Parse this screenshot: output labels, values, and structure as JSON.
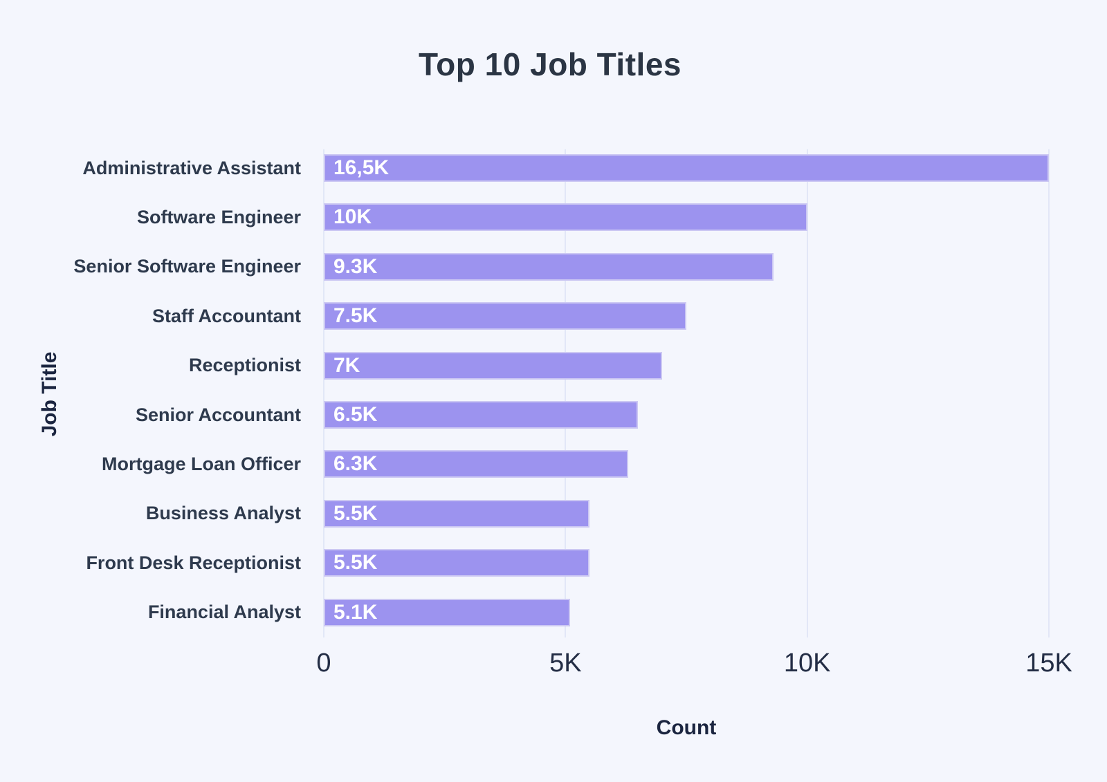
{
  "chart_data": {
    "type": "bar",
    "orientation": "horizontal",
    "title": "Top 10 Job Titles",
    "xlabel": "Count",
    "ylabel": "Job Title",
    "xlim": [
      0,
      15000
    ],
    "grid": "vertical-gridlines-on",
    "legend": "none",
    "xticks": [
      {
        "label": "0",
        "value": 0
      },
      {
        "label": "5K",
        "value": 5000
      },
      {
        "label": "10K",
        "value": 10000
      },
      {
        "label": "15K",
        "value": 15000
      }
    ],
    "categories": [
      "Administrative Assistant",
      "Software Engineer",
      "Senior Software Engineer",
      "Staff Accountant",
      "Receptionist",
      "Senior Accountant",
      "Mortgage Loan Officer",
      "Business Analyst",
      "Front Desk Receptionist",
      "Financial Analyst"
    ],
    "values": [
      16500,
      10000,
      9300,
      7500,
      7000,
      6500,
      6300,
      5500,
      5500,
      5100
    ],
    "bars": [
      {
        "label": "Administrative Assistant",
        "value": 16500,
        "display": "16,5K"
      },
      {
        "label": "Software Engineer",
        "value": 10000,
        "display": "10K"
      },
      {
        "label": "Senior Software Engineer",
        "value": 9300,
        "display": "9.3K"
      },
      {
        "label": "Staff Accountant",
        "value": 7500,
        "display": "7.5K"
      },
      {
        "label": "Receptionist",
        "value": 7000,
        "display": "7K"
      },
      {
        "label": "Senior Accountant",
        "value": 6500,
        "display": "6.5K"
      },
      {
        "label": "Mortgage Loan Officer",
        "value": 6300,
        "display": "6.3K"
      },
      {
        "label": "Business Analyst",
        "value": 5500,
        "display": "5.5K"
      },
      {
        "label": "Front Desk Receptionist",
        "value": 5500,
        "display": "5.5K"
      },
      {
        "label": "Financial Analyst",
        "value": 5100,
        "display": "5.1K"
      }
    ],
    "colors": {
      "background": "#f4f6fd",
      "bar_fill": "#9c93ef",
      "bar_border": "#ccc8f3",
      "value_label": "#ffffff",
      "gridline": "#e2e7f7",
      "category_label": "#2e3a4d",
      "tick_label": "#232d45",
      "axis_title": "#1b2540",
      "title": "#2b3544"
    }
  }
}
